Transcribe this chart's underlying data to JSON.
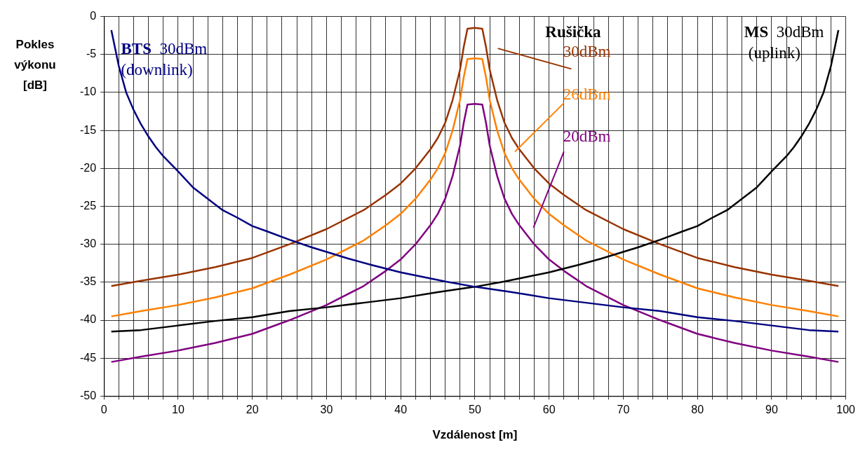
{
  "chart_data": {
    "type": "line",
    "xlabel": "Vzdálenost [m]",
    "ylabel": "Pokles výkonu [dB]",
    "xlim": [
      0,
      100
    ],
    "ylim": [
      -50,
      0
    ],
    "xticks": [
      0,
      {
        "value": 2,
        "label": null
      },
      {
        "value": 4,
        "label": null
      },
      {
        "value": 6,
        "label": null
      },
      {
        "value": 8,
        "label": null
      },
      10,
      {
        "value": 12,
        "label": null
      },
      {
        "value": 14,
        "label": null
      },
      {
        "value": 16,
        "label": null
      },
      {
        "value": 18,
        "label": null
      },
      20,
      {
        "value": 22,
        "label": null
      },
      {
        "value": 24,
        "label": null
      },
      {
        "value": 26,
        "label": null
      },
      {
        "value": 28,
        "label": null
      },
      30,
      {
        "value": 32,
        "label": null
      },
      {
        "value": 34,
        "label": null
      },
      {
        "value": 36,
        "label": null
      },
      {
        "value": 38,
        "label": null
      },
      40,
      {
        "value": 42,
        "label": null
      },
      {
        "value": 44,
        "label": null
      },
      {
        "value": 46,
        "label": null
      },
      {
        "value": 48,
        "label": null
      },
      50,
      {
        "value": 52,
        "label": null
      },
      {
        "value": 54,
        "label": null
      },
      {
        "value": 56,
        "label": null
      },
      {
        "value": 58,
        "label": null
      },
      60,
      {
        "value": 62,
        "label": null
      },
      {
        "value": 64,
        "label": null
      },
      {
        "value": 66,
        "label": null
      },
      {
        "value": 68,
        "label": null
      },
      70,
      {
        "value": 72,
        "label": null
      },
      {
        "value": 74,
        "label": null
      },
      {
        "value": 76,
        "label": null
      },
      {
        "value": 78,
        "label": null
      },
      80,
      {
        "value": 82,
        "label": null
      },
      {
        "value": 84,
        "label": null
      },
      {
        "value": 86,
        "label": null
      },
      {
        "value": 88,
        "label": null
      },
      90,
      {
        "value": 92,
        "label": null
      },
      {
        "value": 94,
        "label": null
      },
      {
        "value": 96,
        "label": null
      },
      {
        "value": 98,
        "label": null
      },
      100
    ],
    "yticks": [
      -50,
      -45,
      -40,
      -35,
      -30,
      -25,
      -20,
      -15,
      -10,
      -5,
      0
    ],
    "grid": true,
    "legend": false,
    "marker": "none",
    "annotations": [
      "Rušička"
    ],
    "series": [
      {
        "name": "BTS 30dBm (downlink)",
        "color": "#000080",
        "x": [
          1,
          2,
          3,
          4,
          5,
          6,
          7,
          8,
          10,
          12,
          14,
          16,
          18,
          20,
          22,
          25,
          28,
          30,
          33,
          36,
          40,
          43,
          46,
          50,
          55,
          60,
          65,
          70,
          75,
          80,
          85,
          90,
          95,
          99
        ],
        "values": [
          -1.8,
          -6.5,
          -10,
          -12.3,
          -14.2,
          -15.8,
          -17.2,
          -18.4,
          -20.4,
          -22.5,
          -24,
          -25.5,
          -26.5,
          -27.6,
          -28.3,
          -29.4,
          -30.4,
          -31,
          -31.9,
          -32.7,
          -33.7,
          -34.3,
          -34.9,
          -35.6,
          -36.3,
          -37.1,
          -37.7,
          -38.3,
          -38.8,
          -39.6,
          -40.1,
          -40.7,
          -41.3,
          -41.5
        ]
      },
      {
        "name": "MS 30dBm (uplink)",
        "color": "#000000",
        "x": [
          1,
          5,
          10,
          15,
          20,
          25,
          30,
          35,
          40,
          45,
          50,
          54,
          57,
          60,
          64,
          67,
          70,
          72,
          75,
          78,
          80,
          82,
          84,
          86,
          88,
          90,
          92,
          93,
          94,
          95,
          96,
          97,
          98,
          99
        ],
        "values": [
          -41.5,
          -41.3,
          -40.7,
          -40.1,
          -39.6,
          -38.8,
          -38.3,
          -37.7,
          -37.1,
          -36.3,
          -35.6,
          -34.9,
          -34.3,
          -33.7,
          -32.7,
          -31.9,
          -31,
          -30.4,
          -29.4,
          -28.3,
          -27.6,
          -26.5,
          -25.5,
          -24,
          -22.5,
          -20.4,
          -18.4,
          -17.2,
          -15.8,
          -14.2,
          -12.3,
          -10,
          -6.5,
          -1.8
        ]
      },
      {
        "name": "30dBm",
        "color": "#993300",
        "x": [
          1,
          5,
          10,
          15,
          20,
          25,
          30,
          35,
          38,
          40,
          42,
          44,
          45,
          46,
          47,
          48,
          48.5,
          49,
          50,
          51,
          51.5,
          52,
          53,
          54,
          55,
          56,
          58,
          60,
          62,
          65,
          70,
          75,
          80,
          85,
          90,
          95,
          99
        ],
        "values": [
          -35.5,
          -34.8,
          -34,
          -33,
          -31.8,
          -30,
          -28,
          -25.5,
          -23.5,
          -22,
          -20,
          -17.5,
          -16,
          -14,
          -11,
          -7,
          -4,
          -1.6,
          -1.5,
          -1.6,
          -4,
          -7,
          -11,
          -14,
          -16,
          -17.5,
          -20,
          -22,
          -23.5,
          -25.5,
          -28,
          -30,
          -31.8,
          -33,
          -34,
          -34.8,
          -35.5
        ]
      },
      {
        "name": "26dBm",
        "color": "#ff8000",
        "x": [
          1,
          5,
          10,
          15,
          20,
          25,
          30,
          35,
          38,
          40,
          42,
          44,
          45,
          46,
          47,
          48,
          48.5,
          49,
          50,
          51,
          51.5,
          52,
          53,
          54,
          55,
          56,
          58,
          60,
          62,
          65,
          70,
          75,
          80,
          85,
          90,
          95,
          99
        ],
        "values": [
          -39.5,
          -38.8,
          -38,
          -37,
          -35.8,
          -34,
          -32,
          -29.5,
          -27.5,
          -26,
          -24,
          -21.5,
          -20,
          -18,
          -15,
          -11,
          -8,
          -5.6,
          -5.5,
          -5.6,
          -8,
          -11,
          -15,
          -18,
          -20,
          -21.5,
          -24,
          -26,
          -27.5,
          -29.5,
          -32,
          -34,
          -35.8,
          -37,
          -38,
          -38.8,
          -39.5
        ]
      },
      {
        "name": "20dBm",
        "color": "#800080",
        "x": [
          1,
          5,
          10,
          15,
          20,
          25,
          30,
          35,
          38,
          40,
          42,
          44,
          45,
          46,
          47,
          48,
          48.5,
          49,
          50,
          51,
          51.5,
          52,
          53,
          54,
          55,
          56,
          58,
          60,
          62,
          65,
          70,
          75,
          80,
          85,
          90,
          95,
          99
        ],
        "values": [
          -45.5,
          -44.8,
          -44,
          -43,
          -41.8,
          -40,
          -38,
          -35.5,
          -33.5,
          -32,
          -30,
          -27.5,
          -26,
          -24,
          -21,
          -17,
          -14,
          -11.6,
          -11.5,
          -11.6,
          -14,
          -17,
          -21,
          -24,
          -26,
          -27.5,
          -30,
          -32,
          -33.5,
          -35.5,
          -38,
          -40,
          -41.8,
          -43,
          -44,
          -44.8,
          -45.5
        ]
      }
    ]
  }
}
